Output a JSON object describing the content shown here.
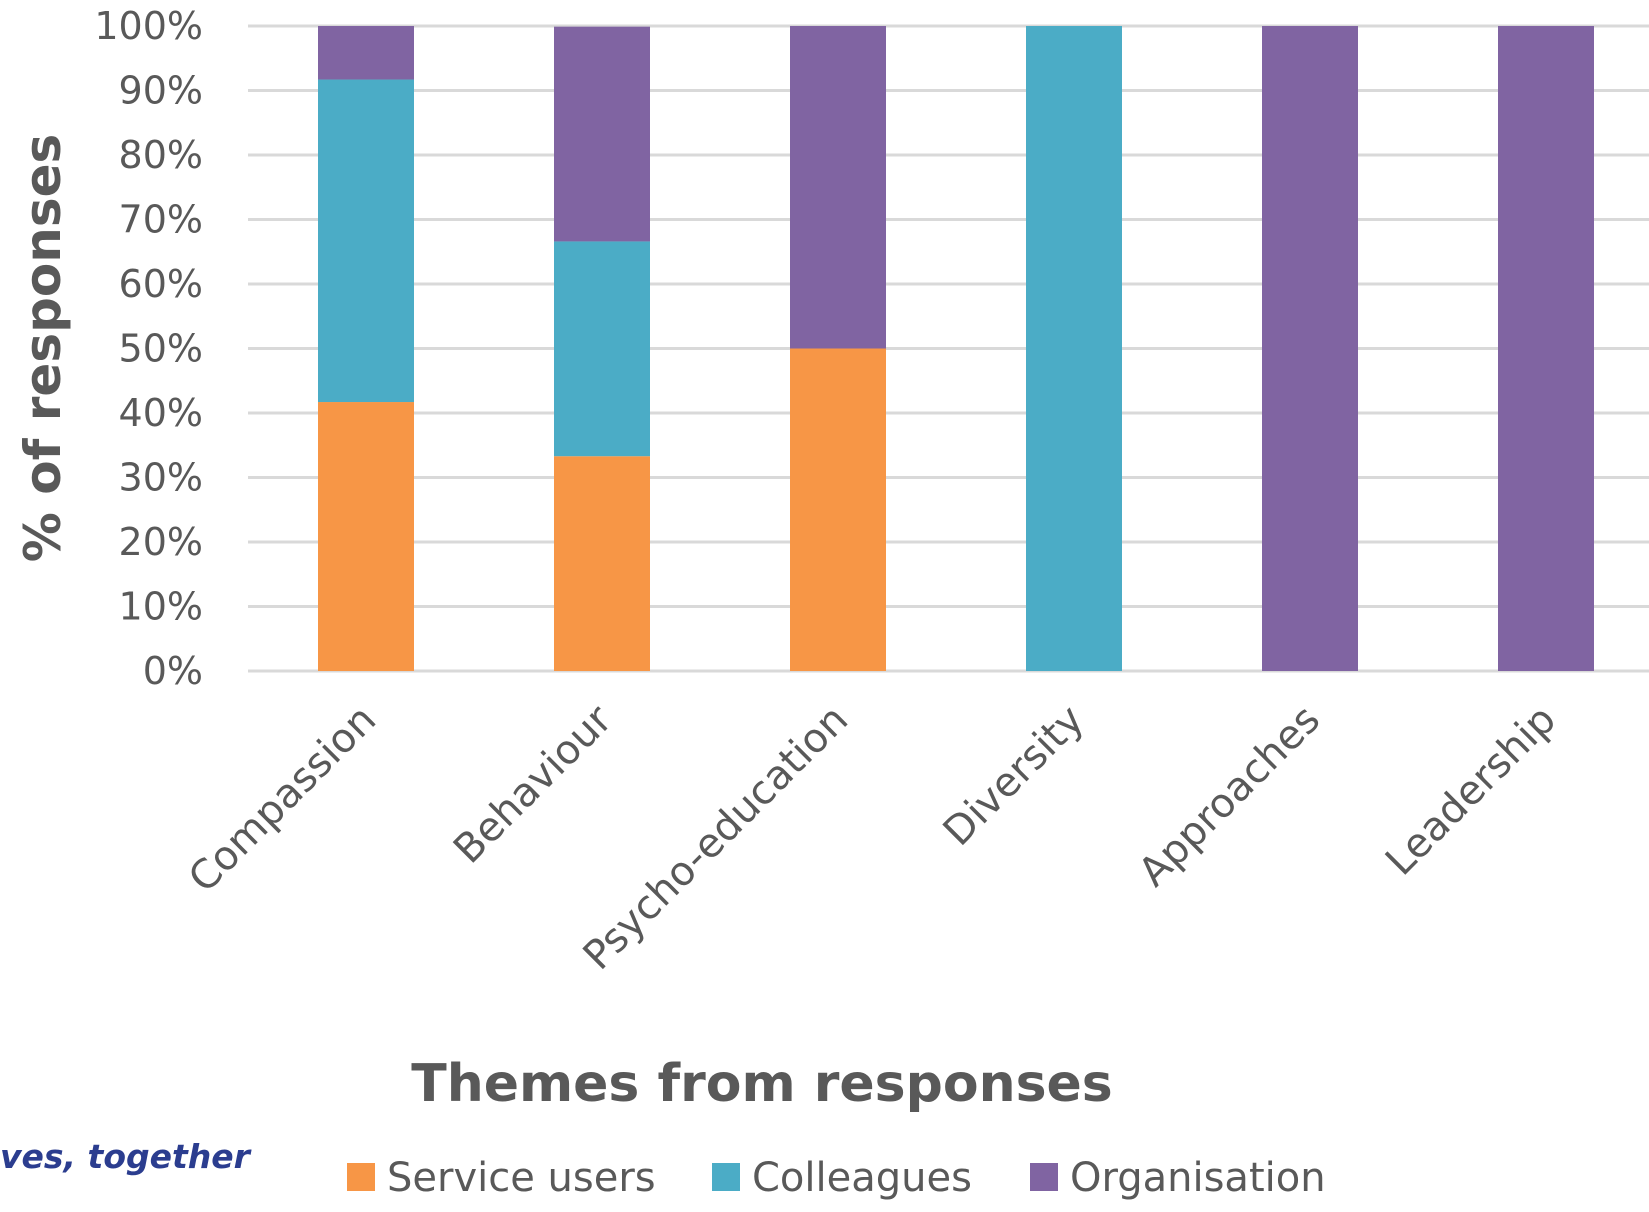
{
  "chart_data": {
    "type": "bar",
    "stacked": true,
    "categories": [
      "Compassion",
      "Behaviour",
      "Psycho-education",
      "Diversity",
      "Approaches",
      "Leadership"
    ],
    "series": [
      {
        "name": "Service users",
        "color": "#f79646",
        "values": [
          41.7,
          33.3,
          50,
          0,
          0,
          0
        ]
      },
      {
        "name": "Colleagues",
        "color": "#4bacc6",
        "values": [
          50,
          33.3,
          0,
          100,
          0,
          0
        ]
      },
      {
        "name": "Organisation",
        "color": "#8064a2",
        "values": [
          8.3,
          33.3,
          50,
          0,
          100,
          100
        ]
      }
    ],
    "ylim": [
      0,
      100
    ],
    "yticks": [
      "0%",
      "10%",
      "20%",
      "30%",
      "40%",
      "50%",
      "60%",
      "70%",
      "80%",
      "90%",
      "100%"
    ],
    "xlabel": "Themes from responses",
    "ylabel": "% of responses",
    "grid": true,
    "legend_position": "bottom"
  },
  "footer": {
    "left_text": "ves, together"
  }
}
